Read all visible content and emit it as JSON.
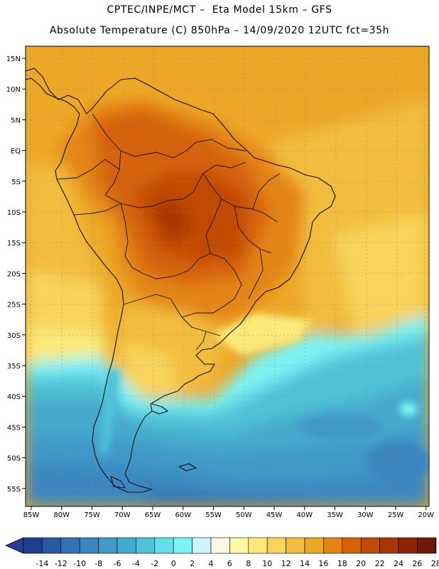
{
  "header": {
    "line1": "CPTEC/INPE/MCT –  Eta Model 15km – GFS",
    "line2": "Absolute Temperature (C) 850hPa – 14/09/2020 12UTC fct=35h"
  },
  "map": {
    "lat_labels": [
      "15N",
      "10N",
      "5N",
      "EQ",
      "5S",
      "10S",
      "15S",
      "20S",
      "25S",
      "30S",
      "35S",
      "40S",
      "45S",
      "50S",
      "55S"
    ],
    "lon_labels": [
      "85W",
      "80W",
      "75W",
      "70W",
      "65W",
      "60W",
      "55W",
      "50W",
      "45W",
      "40W",
      "35W",
      "30W",
      "25W",
      "20W"
    ]
  },
  "colorbar": {
    "labels": [
      "-14",
      "-12",
      "-10",
      "-8",
      "-6",
      "-4",
      "-2",
      "0",
      "2",
      "4",
      "6",
      "8",
      "10",
      "12",
      "14",
      "16",
      "18",
      "20",
      "22",
      "24",
      "26",
      "28"
    ],
    "colors": [
      "#1f3f8a",
      "#2c58a0",
      "#3672b3",
      "#3b86c1",
      "#3f98c8",
      "#44aacd",
      "#4fc2d8",
      "#62dfe9",
      "#7cf3f6",
      "#cdf5fb",
      "#fff9e4",
      "#fff6a8",
      "#fce97a",
      "#f8d45c",
      "#f2bd3e",
      "#eda726",
      "#e48412",
      "#d66208",
      "#c24a06",
      "#a93404",
      "#8c2506",
      "#6e1a08"
    ],
    "under_color": "#283c98",
    "over_color": "#7d0a2a"
  }
}
